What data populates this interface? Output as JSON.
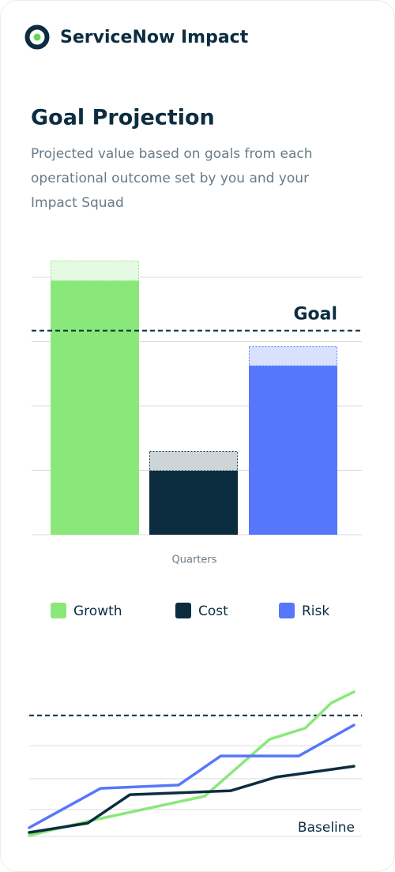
{
  "header": {
    "title": "ServiceNow Impact"
  },
  "section": {
    "title": "Goal Projection",
    "subtitle_lines": [
      "Projected value based on goals from each",
      "operational outcome set by you and your",
      "Impact Squad"
    ]
  },
  "chart_data": [
    {
      "type": "bar",
      "x_label": "Quarters",
      "ylim": [
        0,
        4.3
      ],
      "yticks": [
        0,
        1,
        2,
        3,
        4
      ],
      "grid": true,
      "goal": {
        "label": "Goal",
        "value": 3.17
      },
      "series": [
        {
          "name": "Growth",
          "color": "#8ae87a",
          "values": [
            3.95
          ],
          "projection": [
            0.31
          ]
        },
        {
          "name": "Cost",
          "color": "#0c2d40",
          "values": [
            1.0
          ],
          "projection": [
            0.3
          ]
        },
        {
          "name": "Risk",
          "color": "#5677fc",
          "values": [
            2.63
          ],
          "projection": [
            0.3
          ]
        }
      ]
    },
    {
      "type": "line",
      "baseline_label": "Baseline",
      "xlim": [
        0,
        10
      ],
      "ylim": [
        0,
        4.9
      ],
      "yticks": [
        0,
        0.89,
        1.91,
        3.0
      ],
      "grid": true,
      "goal": {
        "value": 4.0
      },
      "series": [
        {
          "color": "#8ae87a",
          "x": [
            0,
            1.8,
            5.4,
            7.4,
            8.5,
            9.3,
            10
          ],
          "values": [
            0.03,
            0.5,
            1.33,
            3.21,
            3.58,
            4.41,
            4.78
          ]
        },
        {
          "color": "#0c2d40",
          "x": [
            0,
            1.8,
            3.1,
            6.2,
            7.6,
            10
          ],
          "values": [
            0.13,
            0.44,
            1.38,
            1.51,
            1.96,
            2.32
          ]
        },
        {
          "color": "#5677fc",
          "x": [
            0,
            2.2,
            4.6,
            5.9,
            8.3,
            10
          ],
          "values": [
            0.29,
            1.59,
            1.7,
            2.66,
            2.66,
            3.68
          ]
        }
      ]
    }
  ]
}
